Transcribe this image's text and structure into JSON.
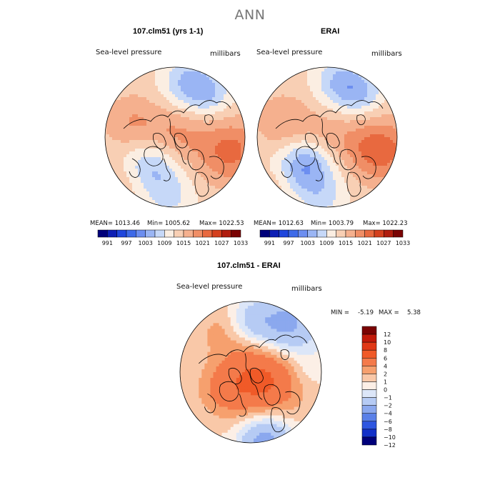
{
  "title": "ANN",
  "chart_data": [
    {
      "type": "heatmap",
      "title": "107.clm51 (yrs 1-1)",
      "variable": "Sea-level pressure",
      "units": "millibars",
      "projection": "north-polar-stereographic",
      "mean": "MEAN= 1013.46",
      "min": "Min= 1005.62",
      "max": "Max= 1022.53",
      "levels": [
        991,
        994,
        997,
        1000,
        1003,
        1006,
        1009,
        1012,
        1015,
        1018,
        1021,
        1024,
        1027,
        1030,
        1033
      ],
      "tick_labels": [
        "991",
        "997",
        "1003",
        "1009",
        "1015",
        "1021",
        "1027",
        "1033"
      ]
    },
    {
      "type": "heatmap",
      "title": "ERAI",
      "variable": "Sea-level pressure",
      "units": "millibars",
      "projection": "north-polar-stereographic",
      "mean": "MEAN= 1012.63",
      "min": "Min= 1003.79",
      "max": "Max= 1022.23",
      "levels": [
        991,
        994,
        997,
        1000,
        1003,
        1006,
        1009,
        1012,
        1015,
        1018,
        1021,
        1024,
        1027,
        1030,
        1033
      ],
      "tick_labels": [
        "991",
        "997",
        "1003",
        "1009",
        "1015",
        "1021",
        "1027",
        "1033"
      ]
    },
    {
      "type": "heatmap",
      "title": "107.clm51 - ERAI",
      "variable": "Sea-level pressure",
      "units": "millibars",
      "projection": "north-polar-stereographic",
      "min_label": "MIN =",
      "min_value": "-5.19",
      "max_label": "MAX =",
      "max_value": "5.38",
      "levels": [
        -12,
        -10,
        -8,
        -6,
        -4,
        -2,
        -1,
        0,
        1,
        2,
        4,
        6,
        8,
        10,
        12
      ],
      "tick_labels": [
        "12",
        "10",
        "8",
        "6",
        "4",
        "2",
        "1",
        "0",
        "−1",
        "−2",
        "−4",
        "−6",
        "−8",
        "−10",
        "−12"
      ]
    }
  ],
  "colors": {
    "abs_palette": [
      "#00007a",
      "#0d1fb4",
      "#1f46dc",
      "#3e6ae8",
      "#6c8ef0",
      "#9ab5f4",
      "#c6d8f8",
      "#fbeee2",
      "#f8cfb4",
      "#f5b08e",
      "#f08e66",
      "#e8693f",
      "#d4401e",
      "#b01d0e",
      "#7a0303"
    ],
    "diff_palette": [
      "#7a0303",
      "#c21a0a",
      "#e03816",
      "#f05a28",
      "#f47a4a",
      "#f6a06e",
      "#f9c8a8",
      "#fcefe6",
      "#dce6f8",
      "#b6cbf4",
      "#8ba8ee",
      "#5a80e8",
      "#2e56e0",
      "#1230c8",
      "#00007a"
    ]
  }
}
